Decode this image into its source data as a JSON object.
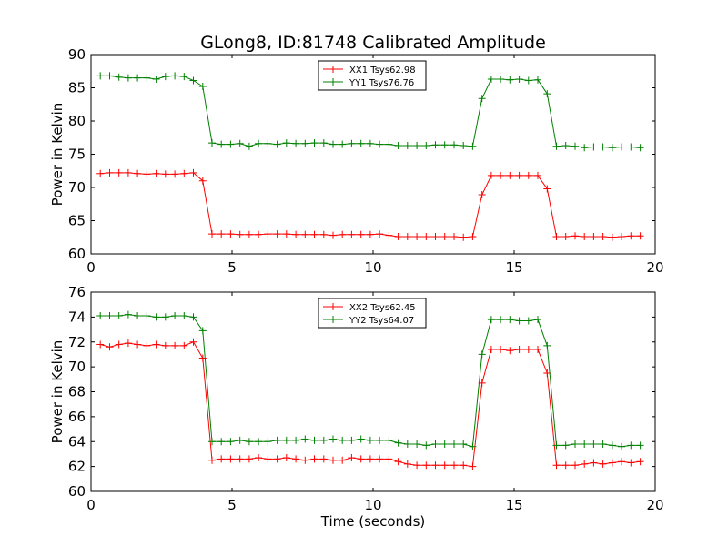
{
  "figure": {
    "title": "GLong8, ID:81748 Calibrated Amplitude"
  },
  "chart_data": [
    {
      "type": "line",
      "title": "GLong8, ID:81748 Calibrated Amplitude",
      "xlabel": "",
      "ylabel": "Power in Kelvin",
      "xlim": [
        0,
        20
      ],
      "ylim": [
        60,
        90
      ],
      "xticks": [
        "0",
        "5",
        "10",
        "15",
        "20"
      ],
      "yticks": [
        "60",
        "65",
        "70",
        "75",
        "80",
        "85",
        "90"
      ],
      "grid": false,
      "legend_position": "top-center",
      "x": [
        0.33,
        0.66,
        0.99,
        1.32,
        1.65,
        1.98,
        2.31,
        2.64,
        2.97,
        3.3,
        3.63,
        3.96,
        4.29,
        4.62,
        4.95,
        5.28,
        5.61,
        5.94,
        6.27,
        6.6,
        6.93,
        7.26,
        7.59,
        7.92,
        8.25,
        8.58,
        8.91,
        9.24,
        9.57,
        9.9,
        10.23,
        10.56,
        10.89,
        11.22,
        11.55,
        11.88,
        12.21,
        12.54,
        12.87,
        13.2,
        13.53,
        13.86,
        14.19,
        14.52,
        14.85,
        15.18,
        15.51,
        15.84,
        16.17,
        16.5,
        16.83,
        17.16,
        17.49,
        17.82,
        18.15,
        18.48,
        18.81,
        19.14,
        19.47
      ],
      "series": [
        {
          "name": "XX1 Tsys62.98",
          "color": "#ff0000",
          "values": [
            72.1,
            72.2,
            72.2,
            72.2,
            72.1,
            72.0,
            72.1,
            72.0,
            72.0,
            72.1,
            72.2,
            71.0,
            63.0,
            63.0,
            63.0,
            62.9,
            62.9,
            62.9,
            63.0,
            63.0,
            63.0,
            62.9,
            62.9,
            62.9,
            62.9,
            62.8,
            62.9,
            62.9,
            62.9,
            62.9,
            63.0,
            62.8,
            62.6,
            62.6,
            62.6,
            62.6,
            62.6,
            62.6,
            62.6,
            62.5,
            62.6,
            68.9,
            71.8,
            71.8,
            71.8,
            71.8,
            71.8,
            71.8,
            69.8,
            62.6,
            62.6,
            62.7,
            62.6,
            62.6,
            62.6,
            62.5,
            62.6,
            62.7,
            62.7
          ]
        },
        {
          "name": "YY1 Tsys76.76",
          "color": "#008000",
          "values": [
            86.8,
            86.8,
            86.6,
            86.5,
            86.5,
            86.5,
            86.3,
            86.7,
            86.8,
            86.7,
            86.1,
            85.2,
            76.7,
            76.5,
            76.5,
            76.6,
            76.2,
            76.6,
            76.6,
            76.5,
            76.7,
            76.6,
            76.6,
            76.7,
            76.7,
            76.5,
            76.5,
            76.6,
            76.6,
            76.6,
            76.5,
            76.5,
            76.3,
            76.3,
            76.3,
            76.3,
            76.4,
            76.4,
            76.4,
            76.3,
            76.2,
            83.4,
            86.3,
            86.3,
            86.2,
            86.3,
            86.1,
            86.2,
            84.1,
            76.2,
            76.3,
            76.2,
            76.0,
            76.1,
            76.1,
            76.0,
            76.1,
            76.1,
            76.0
          ]
        }
      ]
    },
    {
      "type": "line",
      "title": "",
      "xlabel": "Time (seconds)",
      "ylabel": "Power in Kelvin",
      "xlim": [
        0,
        20
      ],
      "ylim": [
        60,
        76
      ],
      "xticks": [
        "0",
        "5",
        "10",
        "15",
        "20"
      ],
      "yticks": [
        "60",
        "62",
        "64",
        "66",
        "68",
        "70",
        "72",
        "74",
        "76"
      ],
      "grid": false,
      "legend_position": "top-center",
      "x": [
        0.33,
        0.66,
        0.99,
        1.32,
        1.65,
        1.98,
        2.31,
        2.64,
        2.97,
        3.3,
        3.63,
        3.96,
        4.29,
        4.62,
        4.95,
        5.28,
        5.61,
        5.94,
        6.27,
        6.6,
        6.93,
        7.26,
        7.59,
        7.92,
        8.25,
        8.58,
        8.91,
        9.24,
        9.57,
        9.9,
        10.23,
        10.56,
        10.89,
        11.22,
        11.55,
        11.88,
        12.21,
        12.54,
        12.87,
        13.2,
        13.53,
        13.86,
        14.19,
        14.52,
        14.85,
        15.18,
        15.51,
        15.84,
        16.17,
        16.5,
        16.83,
        17.16,
        17.49,
        17.82,
        18.15,
        18.48,
        18.81,
        19.14,
        19.47
      ],
      "series": [
        {
          "name": "XX2 Tsys62.45",
          "color": "#ff0000",
          "values": [
            71.8,
            71.6,
            71.8,
            71.9,
            71.8,
            71.7,
            71.8,
            71.7,
            71.7,
            71.7,
            72.0,
            70.7,
            62.5,
            62.6,
            62.6,
            62.6,
            62.6,
            62.7,
            62.6,
            62.6,
            62.7,
            62.6,
            62.5,
            62.6,
            62.6,
            62.5,
            62.5,
            62.7,
            62.6,
            62.6,
            62.6,
            62.6,
            62.4,
            62.2,
            62.1,
            62.1,
            62.1,
            62.1,
            62.1,
            62.1,
            62.0,
            68.7,
            71.4,
            71.4,
            71.3,
            71.4,
            71.4,
            71.4,
            69.5,
            62.1,
            62.1,
            62.1,
            62.2,
            62.3,
            62.2,
            62.3,
            62.4,
            62.3,
            62.4
          ]
        },
        {
          "name": "YY2 Tsys64.07",
          "color": "#008000",
          "values": [
            74.1,
            74.1,
            74.1,
            74.2,
            74.1,
            74.1,
            74.0,
            74.0,
            74.1,
            74.1,
            74.0,
            72.9,
            64.0,
            64.0,
            64.0,
            64.1,
            64.0,
            64.0,
            64.0,
            64.1,
            64.1,
            64.1,
            64.2,
            64.1,
            64.1,
            64.2,
            64.1,
            64.1,
            64.2,
            64.1,
            64.1,
            64.1,
            63.9,
            63.8,
            63.8,
            63.7,
            63.8,
            63.8,
            63.8,
            63.8,
            63.6,
            71.0,
            73.8,
            73.8,
            73.8,
            73.7,
            73.7,
            73.8,
            71.7,
            63.7,
            63.7,
            63.8,
            63.8,
            63.8,
            63.8,
            63.7,
            63.6,
            63.7,
            63.7
          ]
        }
      ]
    }
  ]
}
